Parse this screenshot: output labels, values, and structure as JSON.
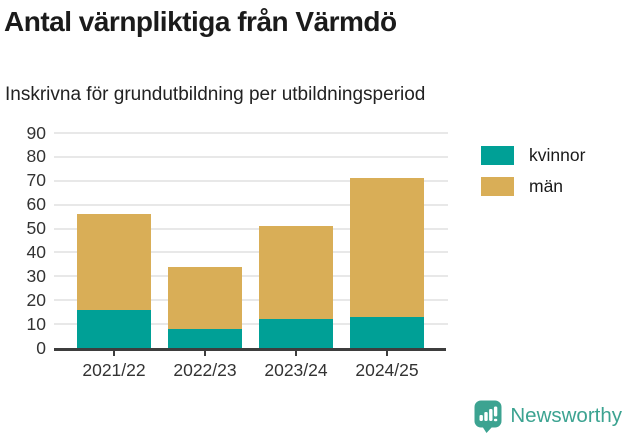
{
  "title": "Antal värnpliktiga från Värmdö",
  "subtitle": "Inskrivna för grundutbildning per utbildningsperiod",
  "footer": {
    "brand": "Newsworthy",
    "brand_color": "#3ca391",
    "logo_icon": "bar-chart-speech-bubble"
  },
  "colors": {
    "kvinnor": "#00a096",
    "man": "#d9ae57",
    "axis_line": "#3d3d3d",
    "gridline": "#e8e8e8",
    "text_dark": "#1b1b1b",
    "tick_text": "#333333"
  },
  "chart_data": {
    "type": "bar",
    "stacked": true,
    "title": "Antal värnpliktiga från Värmdö",
    "subtitle": "Inskrivna för grundutbildning per utbildningsperiod",
    "categories": [
      "2021/22",
      "2022/23",
      "2023/24",
      "2024/25"
    ],
    "series": [
      {
        "name": "kvinnor",
        "color": "#00a096",
        "values": [
          16,
          8,
          12,
          13
        ]
      },
      {
        "name": "män",
        "color": "#d9ae57",
        "values": [
          40,
          26,
          39,
          58
        ]
      }
    ],
    "stack_totals": [
      56,
      34,
      51,
      71
    ],
    "xlabel": "",
    "ylabel": "",
    "ylim": [
      0,
      90
    ],
    "yticks": [
      0,
      10,
      20,
      30,
      40,
      50,
      60,
      70,
      80,
      90
    ],
    "grid": true,
    "legend_position": "right-top"
  }
}
